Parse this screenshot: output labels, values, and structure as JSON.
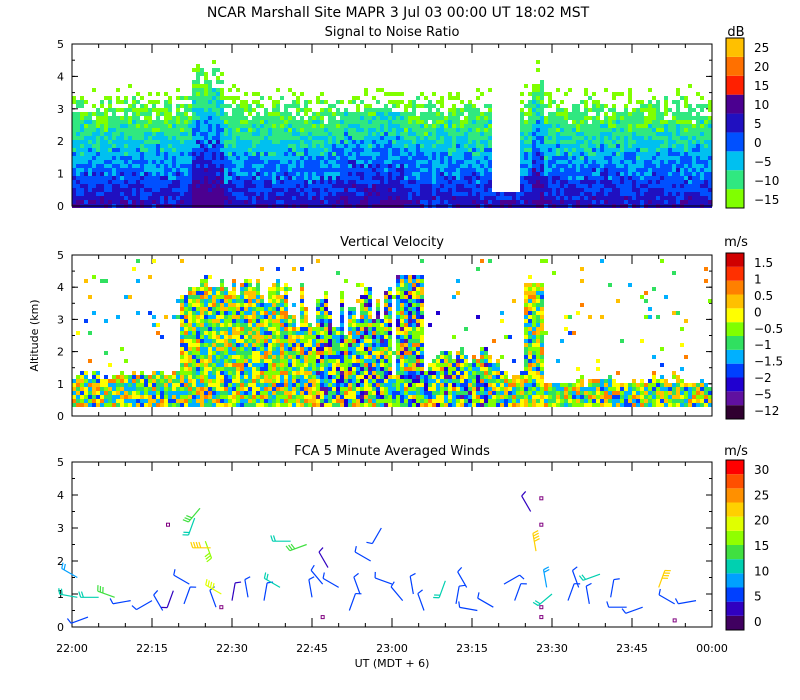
{
  "header": {
    "line1": "NCAR Marshall Site   MAPR   3 Jul 03   00:00 UT   18:02   MST"
  },
  "colors": {
    "snr_bands": [
      "#80ff00",
      "#30e880",
      "#00c0f0",
      "#0050ff",
      "#2010c0",
      "#4b0090",
      "#ff2000",
      "#ff7000",
      "#ffc000"
    ],
    "vv_bands": [
      "#300030",
      "#6010a0",
      "#2000d0",
      "#0040ff",
      "#00b0ff",
      "#30e060",
      "#80ff00",
      "#ffff00",
      "#ffc000",
      "#ff8000",
      "#ff3000",
      "#d00000"
    ],
    "wind_bands": [
      "#400060",
      "#3000c0",
      "#0040ff",
      "#00a0ff",
      "#00d0b0",
      "#40e040",
      "#90ff00",
      "#e0ff00",
      "#ffd000",
      "#ff9000",
      "#ff5000",
      "#ff0000"
    ]
  },
  "chart_data": [
    {
      "id": "snr",
      "type": "heatmap",
      "title": "Signal to Noise Ratio",
      "xlabel": "",
      "ylabel": "",
      "x_ticks": [
        "22:00",
        "22:15",
        "22:30",
        "22:45",
        "23:00",
        "23:15",
        "23:30",
        "23:45",
        "00:00"
      ],
      "xlim_minutes": [
        0,
        120
      ],
      "y_ticks": [
        "0",
        "1",
        "2",
        "3",
        "4",
        "5"
      ],
      "ylim_km": [
        0,
        5
      ],
      "colorbar": {
        "unit": "dB",
        "labels": [
          "25",
          "20",
          "15",
          "10",
          "5",
          "0",
          "−5",
          "−10",
          "−15"
        ],
        "values": [
          25,
          20,
          15,
          10,
          5,
          0,
          -5,
          -10,
          -15
        ]
      }
    },
    {
      "id": "vv",
      "type": "heatmap",
      "title": "Vertical Velocity",
      "xlabel": "",
      "ylabel": "Altitude (km)",
      "x_ticks": [
        "22:00",
        "22:15",
        "22:30",
        "22:45",
        "23:00",
        "23:15",
        "23:30",
        "23:45",
        "00:00"
      ],
      "xlim_minutes": [
        0,
        120
      ],
      "y_ticks": [
        "0",
        "1",
        "2",
        "3",
        "4",
        "5"
      ],
      "ylim_km": [
        0,
        5
      ],
      "colorbar": {
        "unit": "m/s",
        "labels": [
          "1.5",
          "1",
          "0.5",
          "0",
          "−0.5",
          "−1",
          "−1.5",
          "−2",
          "−5",
          "−12"
        ],
        "values": [
          1.5,
          1,
          0.5,
          0,
          -0.5,
          -1,
          -1.5,
          -2,
          -5,
          -12
        ]
      }
    },
    {
      "id": "winds",
      "type": "scatter",
      "title": "FCA 5 Minute Averaged Winds",
      "xlabel": "UT  (MDT + 6)",
      "ylabel": "",
      "x_ticks": [
        "22:00",
        "22:15",
        "22:30",
        "22:45",
        "23:00",
        "23:15",
        "23:30",
        "23:45",
        "00:00"
      ],
      "xlim_minutes": [
        0,
        120
      ],
      "y_ticks": [
        "0",
        "1",
        "2",
        "3",
        "4",
        "5"
      ],
      "ylim_km": [
        0,
        5
      ],
      "colorbar": {
        "unit": "m/s",
        "labels": [
          "30",
          "25",
          "20",
          "15",
          "10",
          "5",
          "0"
        ],
        "values": [
          30,
          25,
          20,
          15,
          10,
          5,
          0
        ]
      },
      "barbs": [
        {
          "t": 1,
          "alt": 1.5,
          "dir": 300,
          "spd": 8
        },
        {
          "t": 1,
          "alt": 0.9,
          "dir": 280,
          "spd": 12
        },
        {
          "t": 3,
          "alt": 0.3,
          "dir": 250,
          "spd": 5
        },
        {
          "t": 5,
          "alt": 0.9,
          "dir": 270,
          "spd": 12
        },
        {
          "t": 8,
          "alt": 0.9,
          "dir": 290,
          "spd": 13
        },
        {
          "t": 11,
          "alt": 0.8,
          "dir": 260,
          "spd": 6
        },
        {
          "t": 15,
          "alt": 0.8,
          "dir": 240,
          "spd": 7
        },
        {
          "t": 17,
          "alt": 0.5,
          "dir": 330,
          "spd": 5
        },
        {
          "t": 19,
          "alt": 1.1,
          "dir": 200,
          "spd": 4
        },
        {
          "t": 21,
          "alt": 0.7,
          "dir": 20,
          "spd": 6
        },
        {
          "t": 22,
          "alt": 1.3,
          "dir": 300,
          "spd": 6
        },
        {
          "t": 23,
          "alt": 3.3,
          "dir": 200,
          "spd": 12
        },
        {
          "t": 24,
          "alt": 3.6,
          "dir": 220,
          "spd": 14
        },
        {
          "t": 25,
          "alt": 2.6,
          "dir": 160,
          "spd": 17
        },
        {
          "t": 26,
          "alt": 2.4,
          "dir": 270,
          "spd": 20
        },
        {
          "t": 27,
          "alt": 0.6,
          "dir": 340,
          "spd": 5
        },
        {
          "t": 28,
          "alt": 1.0,
          "dir": 300,
          "spd": 18
        },
        {
          "t": 30,
          "alt": 0.8,
          "dir": 10,
          "spd": 4
        },
        {
          "t": 33,
          "alt": 0.9,
          "dir": 350,
          "spd": 5
        },
        {
          "t": 36,
          "alt": 0.8,
          "dir": 10,
          "spd": 7
        },
        {
          "t": 39,
          "alt": 1.2,
          "dir": 300,
          "spd": 11
        },
        {
          "t": 41,
          "alt": 2.6,
          "dir": 270,
          "spd": 10
        },
        {
          "t": 44,
          "alt": 2.5,
          "dir": 250,
          "spd": 14
        },
        {
          "t": 45,
          "alt": 0.9,
          "dir": 350,
          "spd": 6
        },
        {
          "t": 47,
          "alt": 1.3,
          "dir": 320,
          "spd": 6
        },
        {
          "t": 48,
          "alt": 1.8,
          "dir": 330,
          "spd": 4
        },
        {
          "t": 50,
          "alt": 1.2,
          "dir": 300,
          "spd": 7
        },
        {
          "t": 52,
          "alt": 0.5,
          "dir": 20,
          "spd": 5
        },
        {
          "t": 54,
          "alt": 1.0,
          "dir": 340,
          "spd": 7
        },
        {
          "t": 56,
          "alt": 2.0,
          "dir": 300,
          "spd": 6
        },
        {
          "t": 58,
          "alt": 3.0,
          "dir": 210,
          "spd": 6
        },
        {
          "t": 60,
          "alt": 1.3,
          "dir": 290,
          "spd": 6
        },
        {
          "t": 62,
          "alt": 0.8,
          "dir": 320,
          "spd": 6
        },
        {
          "t": 64,
          "alt": 1.0,
          "dir": 350,
          "spd": 6
        },
        {
          "t": 66,
          "alt": 0.5,
          "dir": 340,
          "spd": 5
        },
        {
          "t": 70,
          "alt": 1.4,
          "dir": 200,
          "spd": 12
        },
        {
          "t": 72,
          "alt": 0.7,
          "dir": 10,
          "spd": 5
        },
        {
          "t": 74,
          "alt": 1.2,
          "dir": 330,
          "spd": 6
        },
        {
          "t": 76,
          "alt": 0.5,
          "dir": 280,
          "spd": 5
        },
        {
          "t": 79,
          "alt": 0.6,
          "dir": 300,
          "spd": 6
        },
        {
          "t": 81,
          "alt": 1.3,
          "dir": 60,
          "spd": 6
        },
        {
          "t": 83,
          "alt": 0.8,
          "dir": 20,
          "spd": 5
        },
        {
          "t": 86,
          "alt": 3.5,
          "dir": 330,
          "spd": 4
        },
        {
          "t": 87,
          "alt": 2.3,
          "dir": 350,
          "spd": 22
        },
        {
          "t": 89,
          "alt": 1.2,
          "dir": 350,
          "spd": 8
        },
        {
          "t": 90,
          "alt": 1.0,
          "dir": 230,
          "spd": 12
        },
        {
          "t": 93,
          "alt": 0.8,
          "dir": 20,
          "spd": 6
        },
        {
          "t": 95,
          "alt": 1.2,
          "dir": 340,
          "spd": 5
        },
        {
          "t": 97,
          "alt": 0.7,
          "dir": 350,
          "spd": 6
        },
        {
          "t": 99,
          "alt": 1.6,
          "dir": 250,
          "spd": 10
        },
        {
          "t": 101,
          "alt": 0.9,
          "dir": 10,
          "spd": 6
        },
        {
          "t": 104,
          "alt": 0.6,
          "dir": 270,
          "spd": 6
        },
        {
          "t": 107,
          "alt": 0.6,
          "dir": 250,
          "spd": 5
        },
        {
          "t": 110,
          "alt": 1.2,
          "dir": 20,
          "spd": 20
        },
        {
          "t": 113,
          "alt": 0.7,
          "dir": 300,
          "spd": 6
        },
        {
          "t": 117,
          "alt": 0.8,
          "dir": 260,
          "spd": 6
        }
      ],
      "calm": [
        {
          "t": 18,
          "alt": 3.1
        },
        {
          "t": 28,
          "alt": 0.6
        },
        {
          "t": 47,
          "alt": 0.3
        },
        {
          "t": 88,
          "alt": 3.9
        },
        {
          "t": 88,
          "alt": 3.1
        },
        {
          "t": 88,
          "alt": 0.6
        },
        {
          "t": 88,
          "alt": 0.3
        },
        {
          "t": 113,
          "alt": 0.2
        }
      ]
    }
  ]
}
